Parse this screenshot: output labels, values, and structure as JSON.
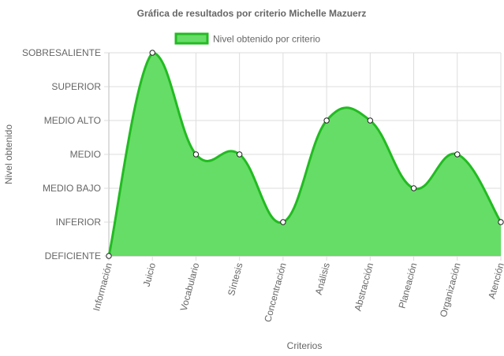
{
  "chart_data": {
    "type": "area",
    "title": "Gráfica de resultados por criterio Michelle Mazuerz",
    "xlabel": "Criterios",
    "ylabel": "Nivel obtenido",
    "categories": [
      "Información",
      "Juicio",
      "Vocabulario",
      "Síntesis",
      "Concentración",
      "Análisis",
      "Abstracción",
      "Planeación",
      "Organización",
      "Atención"
    ],
    "y_levels": [
      "DEFICIENTE",
      "INFERIOR",
      "MEDIO BAJO",
      "MEDIO",
      "MEDIO ALTO",
      "SUPERIOR",
      "SOBRESALIENTE"
    ],
    "ylim": [
      0,
      6
    ],
    "grid": true,
    "legend_position": "top",
    "series": [
      {
        "name": "Nivel obtenido por criterio",
        "values": [
          0,
          6,
          3,
          3,
          1,
          4,
          4,
          2,
          3,
          1
        ],
        "fill_color": "#66dd66",
        "line_color": "#22bb22"
      }
    ]
  }
}
